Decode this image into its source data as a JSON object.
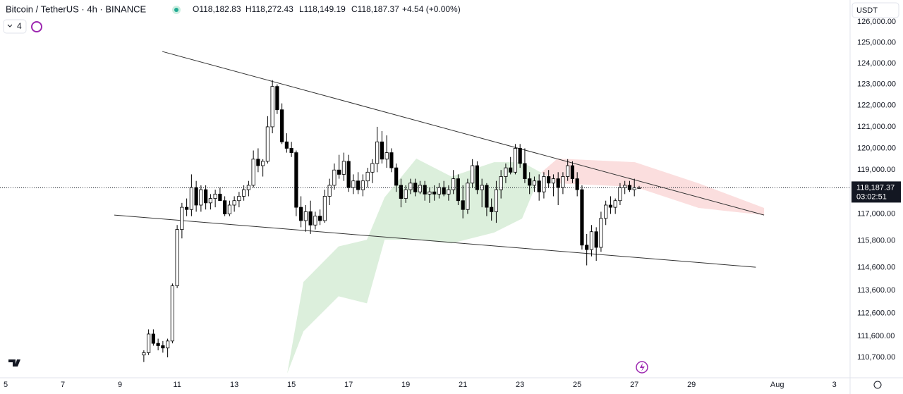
{
  "header": {
    "symbol": "Bitcoin / TetherUS · 4h · BINANCE",
    "open": "O118,182.83",
    "high": "H118,272.43",
    "low": "L118,149.19",
    "close": "C118,187.37",
    "change": "+4.54 (+0.00%)",
    "indicators": "4",
    "currency": "USDT"
  },
  "chart_data": {
    "type": "candlestick",
    "log": true,
    "grid": false,
    "up_color": "#ffffff",
    "down_color": "#000000",
    "outline_color": "#000000",
    "xlim": [
      4.8,
      34.55
    ],
    "ylim": [
      109830,
      127070
    ],
    "xticks": [
      5,
      7,
      9,
      11,
      13,
      15,
      17,
      19,
      21,
      23,
      25,
      27,
      29,
      {
        "value": 32,
        "label": "Aug"
      },
      {
        "value": 34,
        "label": "3"
      }
    ],
    "yticks": [
      {
        "value": 126000,
        "label": "126,000.00"
      },
      {
        "value": 125000,
        "label": "125,000.00"
      },
      {
        "value": 124000,
        "label": "124,000.00"
      },
      {
        "value": 123000,
        "label": "123,000.00"
      },
      {
        "value": 122000,
        "label": "122,000.00"
      },
      {
        "value": 121000,
        "label": "121,000.00"
      },
      {
        "value": 120000,
        "label": "120,000.00"
      },
      {
        "value": 119000,
        "label": "119,000.00"
      },
      {
        "value": 117000,
        "label": "117,000.00"
      },
      {
        "value": 115800,
        "label": "115,800.00"
      },
      {
        "value": 114600,
        "label": "114,600.00"
      },
      {
        "value": 113600,
        "label": "113,600.00"
      },
      {
        "value": 112600,
        "label": "112,600.00"
      },
      {
        "value": 111600,
        "label": "111,600.00"
      },
      {
        "value": 110700,
        "label": "110,700.00"
      }
    ],
    "x": [
      9.8333,
      10,
      10.1667,
      10.3333,
      10.5,
      10.6667,
      10.8333,
      11,
      11.1667,
      11.3333,
      11.5,
      11.6667,
      11.8333,
      12,
      12.1667,
      12.3333,
      12.5,
      12.6667,
      12.8333,
      13,
      13.1667,
      13.3333,
      13.5,
      13.6667,
      13.8333,
      14,
      14.1667,
      14.3333,
      14.5,
      14.6667,
      14.8333,
      15,
      15.1667,
      15.3333,
      15.5,
      15.6667,
      15.8333,
      16,
      16.1667,
      16.3333,
      16.5,
      16.6667,
      16.8333,
      17,
      17.1667,
      17.3333,
      17.5,
      17.6667,
      17.8333,
      18,
      18.1667,
      18.3333,
      18.5,
      18.6667,
      18.8333,
      19,
      19.1667,
      19.3333,
      19.5,
      19.6667,
      19.8333,
      20,
      20.1667,
      20.3333,
      20.5,
      20.6667,
      20.8333,
      21,
      21.1667,
      21.3333,
      21.5,
      21.6667,
      21.8333,
      22,
      22.1667,
      22.3333,
      22.5,
      22.6667,
      22.8333,
      23,
      23.1667,
      23.3333,
      23.5,
      23.6667,
      23.8333,
      24,
      24.1667,
      24.3333,
      24.5,
      24.6667,
      24.8333,
      25,
      25.1667,
      25.3333,
      25.5,
      25.6667,
      25.8333,
      26,
      26.1667,
      26.3333,
      26.5,
      26.6667,
      26.8333,
      27,
      27.1667
    ],
    "open": [
      110800,
      110900,
      111700,
      111300,
      111200,
      111100,
      111400,
      113800,
      116300,
      117300,
      117200,
      118200,
      117400,
      118100,
      117500,
      117700,
      117900,
      117600,
      117000,
      117400,
      117600,
      117800,
      118100,
      118300,
      119500,
      119200,
      119400,
      121000,
      122900,
      121800,
      120300,
      120000,
      119800,
      117300,
      116700,
      117100,
      116500,
      116900,
      116700,
      117800,
      118300,
      119000,
      118800,
      119400,
      118200,
      118500,
      118100,
      118500,
      118900,
      119300,
      120300,
      119500,
      119800,
      119100,
      118300,
      117700,
      118100,
      118400,
      118000,
      118300,
      117900,
      118000,
      117900,
      118200,
      117900,
      118100,
      118600,
      117600,
      117200,
      118400,
      119200,
      118100,
      118300,
      117300,
      117100,
      118100,
      118700,
      119100,
      118900,
      120000,
      119300,
      118600,
      118300,
      118500,
      118000,
      118700,
      118400,
      118600,
      118200,
      118700,
      119200,
      118600,
      118100,
      115600,
      115400,
      116200,
      115500,
      116800,
      117400,
      117300,
      117600,
      118200,
      118300,
      118100,
      118182.83
    ],
    "high": [
      111000,
      111900,
      111900,
      111500,
      111400,
      111500,
      113900,
      116500,
      117500,
      117700,
      118800,
      118500,
      118300,
      118300,
      117900,
      118100,
      118200,
      117800,
      117600,
      117800,
      118000,
      118300,
      118500,
      119900,
      120000,
      119500,
      121500,
      123200,
      123000,
      122100,
      120700,
      120300,
      119900,
      117800,
      117400,
      117600,
      117100,
      117200,
      118100,
      118600,
      119300,
      119700,
      119800,
      119700,
      118800,
      118900,
      118800,
      119100,
      119500,
      121000,
      120800,
      120600,
      120000,
      119300,
      118600,
      118300,
      118600,
      118600,
      118500,
      118500,
      118200,
      118300,
      118400,
      118500,
      118300,
      119000,
      118800,
      118300,
      118600,
      119500,
      119400,
      118600,
      118400,
      117700,
      118500,
      119000,
      119300,
      119600,
      120200,
      120200,
      120000,
      118900,
      118700,
      118800,
      118900,
      119000,
      118800,
      118900,
      118900,
      119500,
      119400,
      118900,
      118300,
      116100,
      116500,
      116400,
      117100,
      117600,
      117800,
      117700,
      118400,
      118500,
      118500,
      118600,
      118272.43
    ],
    "low": [
      110500,
      110800,
      111200,
      111000,
      110900,
      110700,
      111300,
      113700,
      115900,
      116900,
      116900,
      117100,
      117100,
      117200,
      117200,
      117300,
      117600,
      116900,
      116900,
      117100,
      117300,
      117600,
      117800,
      118200,
      118900,
      118700,
      119300,
      120700,
      121600,
      120200,
      119800,
      119600,
      116900,
      116400,
      116200,
      116100,
      116300,
      116500,
      116600,
      117400,
      118100,
      118600,
      118500,
      118000,
      117900,
      117900,
      117800,
      118200,
      118400,
      118900,
      119300,
      119100,
      118900,
      118000,
      117300,
      117500,
      117900,
      117800,
      117900,
      117600,
      117500,
      117600,
      117700,
      117800,
      117600,
      117900,
      117400,
      116800,
      117000,
      118200,
      117900,
      117300,
      116900,
      116700,
      116600,
      117700,
      118400,
      118800,
      118800,
      119100,
      118400,
      117900,
      118000,
      117600,
      117700,
      118200,
      117800,
      117400,
      117900,
      118500,
      118400,
      117800,
      115400,
      114700,
      115100,
      114900,
      115300,
      116500,
      117000,
      117000,
      117400,
      117900,
      118000,
      117800,
      118149.19
    ],
    "close": [
      110900,
      111700,
      111300,
      111200,
      111100,
      111400,
      113800,
      116300,
      117300,
      117200,
      118200,
      117400,
      118100,
      117500,
      117700,
      117900,
      117600,
      117000,
      117400,
      117600,
      117800,
      118100,
      118300,
      119500,
      119200,
      119400,
      121000,
      122900,
      121800,
      120300,
      120000,
      119800,
      117300,
      116700,
      117100,
      116500,
      116900,
      116700,
      117800,
      118300,
      119000,
      118800,
      119400,
      118200,
      118500,
      118100,
      118500,
      118900,
      119300,
      120300,
      119500,
      119800,
      119100,
      118300,
      117700,
      118100,
      118400,
      118000,
      118300,
      117900,
      118000,
      117900,
      118200,
      117900,
      118100,
      118600,
      117600,
      117200,
      118400,
      119200,
      118100,
      118300,
      117300,
      117100,
      118100,
      118700,
      119100,
      118900,
      120000,
      119300,
      118600,
      118300,
      118500,
      118000,
      118700,
      118400,
      118600,
      118200,
      118700,
      119200,
      118600,
      118100,
      115600,
      115400,
      116200,
      115500,
      116800,
      117400,
      117300,
      117600,
      118200,
      118300,
      118100,
      118182.83,
      118187.37
    ],
    "cloud": [
      {
        "color": "#dcefdc",
        "x": [
          14.85,
          15.42,
          16.65,
          17.64,
          18.26,
          19.37,
          20.6,
          22.09,
          23.07,
          23.74
        ],
        "upper": [
          110010,
          113970,
          115540,
          115840,
          117750,
          119524,
          118700,
          119360,
          119360,
          118880
        ],
        "lower": [
          110010,
          111820,
          113340,
          113030,
          115840,
          115840,
          115680,
          116160,
          116790,
          118880
        ]
      },
      {
        "color": "#fbdede",
        "x": [
          23.74,
          24.31,
          27.02,
          29.25,
          31.54
        ],
        "upper": [
          118880,
          119524,
          119360,
          118390,
          117270
        ],
        "lower": [
          118880,
          118390,
          118230,
          117270,
          116950
        ]
      }
    ],
    "trendlines": [
      {
        "color": "#333333",
        "x": [
          10.48,
          31.54
        ],
        "y": [
          124569,
          116949
        ]
      },
      {
        "color": "#333333",
        "x": [
          8.8,
          31.25
        ],
        "y": [
          116949,
          114620
        ]
      }
    ],
    "last_price": {
      "value": 118187.37,
      "label": "118,187.37"
    },
    "countdown": "03:02:51"
  }
}
